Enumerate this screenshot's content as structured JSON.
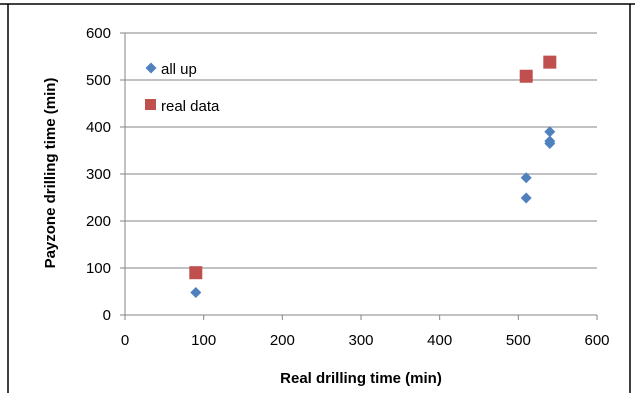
{
  "chart_data": {
    "type": "scatter",
    "title": "",
    "xlabel": "Real drilling time (min)",
    "ylabel": "Payzone drilling time (min)",
    "xlim": [
      0,
      600
    ],
    "ylim": [
      0,
      600
    ],
    "x_ticks": [
      "0",
      "100",
      "200",
      "300",
      "400",
      "500",
      "600"
    ],
    "y_ticks": [
      "0",
      "100",
      "200",
      "300",
      "400",
      "500",
      "600"
    ],
    "grid": "horizontal",
    "legend_position": "top-left",
    "series": [
      {
        "name": "all up",
        "marker": "diamond",
        "color": "#4F81BD",
        "points": [
          {
            "x": 90,
            "y": 48
          },
          {
            "x": 510,
            "y": 292
          },
          {
            "x": 510,
            "y": 249
          },
          {
            "x": 540,
            "y": 390
          },
          {
            "x": 540,
            "y": 370
          },
          {
            "x": 540,
            "y": 365
          }
        ]
      },
      {
        "name": "real data",
        "marker": "square",
        "color": "#C0504D",
        "points": [
          {
            "x": 90,
            "y": 90
          },
          {
            "x": 510,
            "y": 508
          },
          {
            "x": 540,
            "y": 538
          }
        ]
      }
    ]
  }
}
